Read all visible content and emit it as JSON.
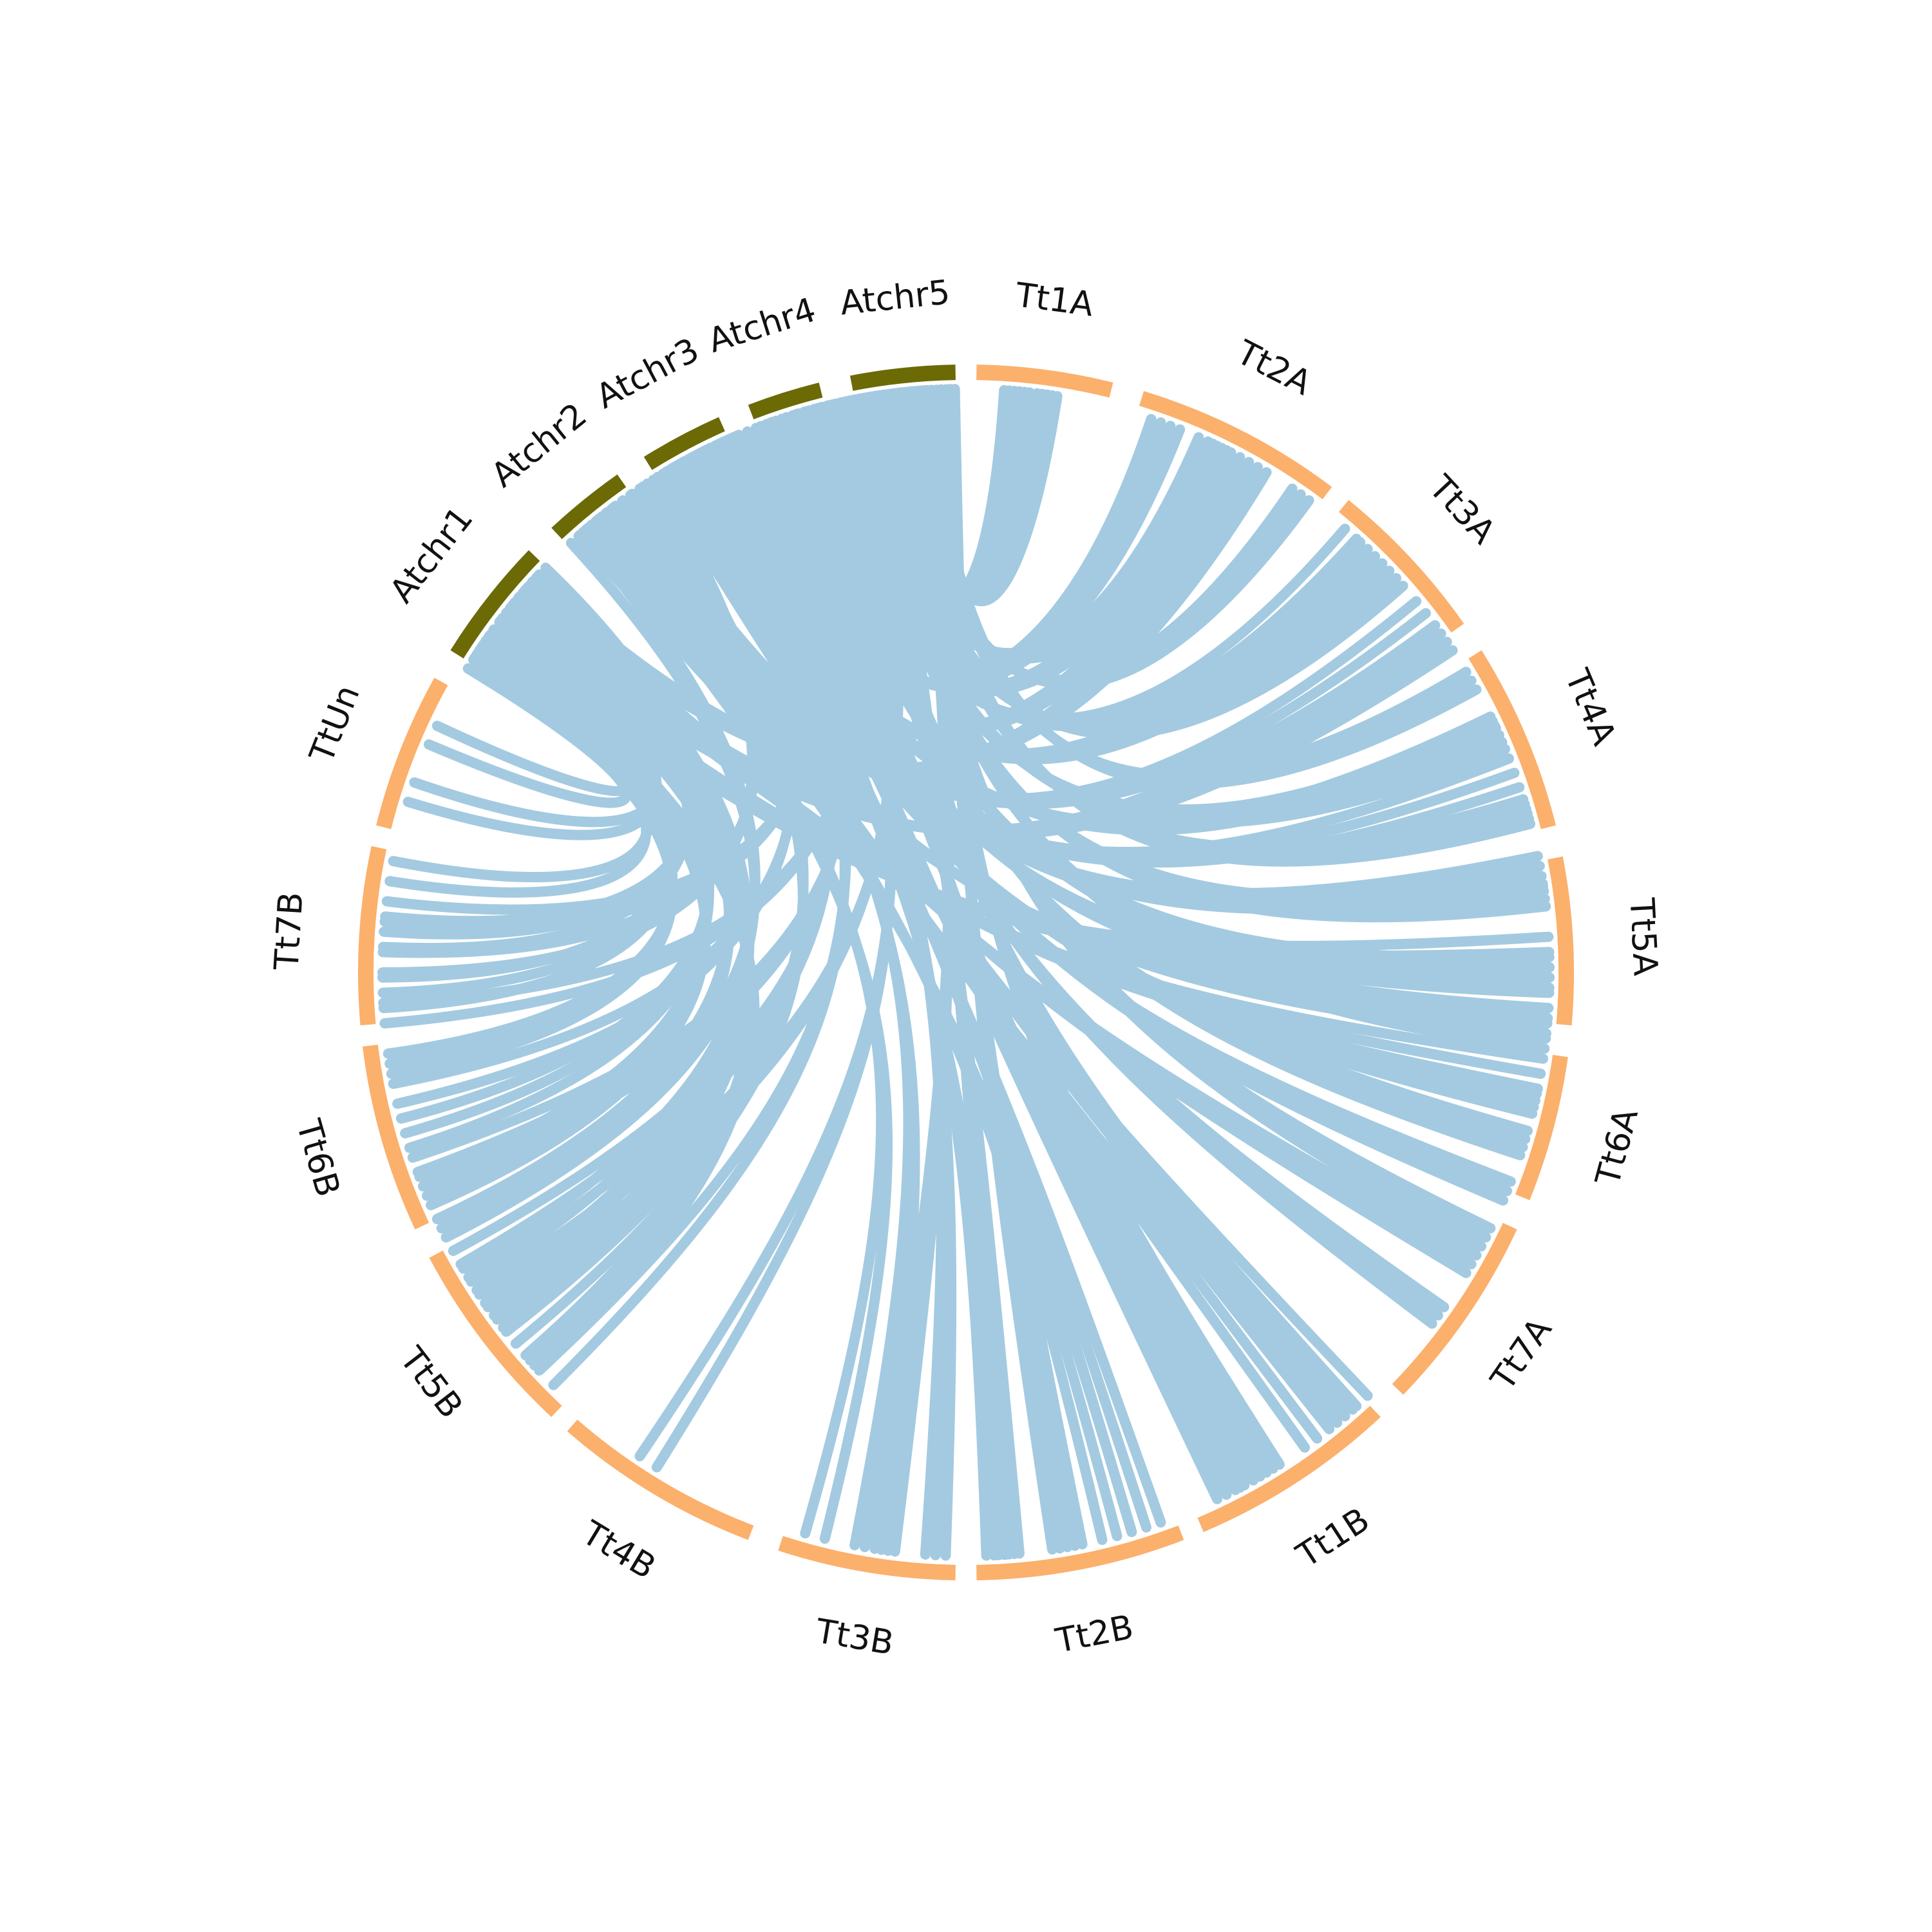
{
  "colors": {
    "background": "#ffffff",
    "link": "#a3cae0",
    "label": "#111111"
  },
  "segments": [
    {
      "name": "Tt1A",
      "color": "#fbb06c"
    },
    {
      "name": "Tt2A",
      "color": "#fbb06c"
    },
    {
      "name": "Tt3A",
      "color": "#fbb06c"
    },
    {
      "name": "Tt4A",
      "color": "#fbb06c"
    },
    {
      "name": "Tt5A",
      "color": "#fbb06c"
    },
    {
      "name": "Tt6A",
      "color": "#fbb06c"
    },
    {
      "name": "Tt7A",
      "color": "#fbb06c"
    },
    {
      "name": "Tt1B",
      "color": "#fbb06c"
    },
    {
      "name": "Tt2B",
      "color": "#fbb06c"
    },
    {
      "name": "Tt3B",
      "color": "#fbb06c"
    },
    {
      "name": "Tt4B",
      "color": "#fbb06c"
    },
    {
      "name": "Tt5B",
      "color": "#fbb06c"
    },
    {
      "name": "Tt6B",
      "color": "#fbb06c"
    },
    {
      "name": "Tt7B",
      "color": "#fbb06c"
    },
    {
      "name": "TtUn",
      "color": "#fbb06c"
    },
    {
      "name": "Atchr1",
      "color": "#6b6a05"
    },
    {
      "name": "Atchr2",
      "color": "#6b6a05"
    },
    {
      "name": "Atchr3",
      "color": "#6b6a05"
    },
    {
      "name": "Atchr4",
      "color": "#6b6a05"
    },
    {
      "name": "Atchr5",
      "color": "#6b6a05"
    }
  ]
}
